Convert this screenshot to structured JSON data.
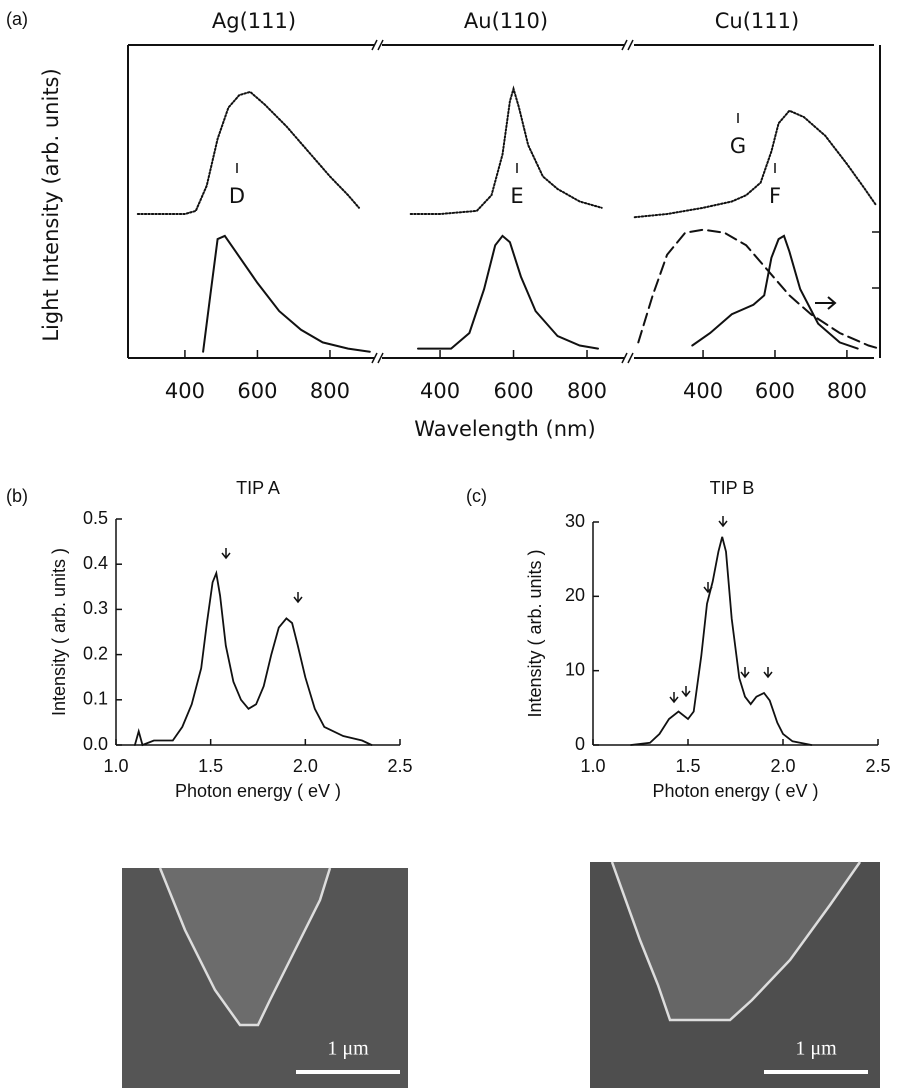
{
  "chart_data": [
    {
      "type": "line",
      "label": "(a)",
      "xlabel": "Wavelength (nm)",
      "ylabel": "Light Intensity (arb. units)",
      "panels": [
        {
          "title": "Ag(111)",
          "xlim": [
            243,
            938
          ],
          "xticks": [
            400,
            600,
            800
          ],
          "ylim": [
            0,
            1
          ],
          "annotations": [
            "D"
          ],
          "series": [
            {
              "color": "#111",
              "style": "dotted",
              "x": [
                270,
                400,
                430,
                460,
                490,
                520,
                550,
                580,
                620,
                680,
                740,
                800,
                850,
                880
              ],
              "values": [
                0.46,
                0.46,
                0.47,
                0.55,
                0.7,
                0.8,
                0.84,
                0.85,
                0.81,
                0.74,
                0.66,
                0.58,
                0.52,
                0.48
              ]
            },
            {
              "color": "#111",
              "style": "solid",
              "x": [
                450,
                470,
                490,
                510,
                540,
                600,
                660,
                720,
                780,
                850,
                910
              ],
              "values": [
                0.02,
                0.2,
                0.38,
                0.39,
                0.34,
                0.24,
                0.15,
                0.09,
                0.05,
                0.03,
                0.02
              ]
            }
          ]
        },
        {
          "title": "Au(110)",
          "xlim": [
            242,
            917
          ],
          "xticks": [
            400,
            600,
            800
          ],
          "ylim": [
            0,
            1
          ],
          "annotations": [
            "E"
          ],
          "series": [
            {
              "color": "#111",
              "style": "dotted",
              "x": [
                320,
                400,
                500,
                540,
                570,
                590,
                600,
                615,
                640,
                680,
                720,
                780,
                840
              ],
              "values": [
                0.46,
                0.46,
                0.47,
                0.52,
                0.65,
                0.82,
                0.86,
                0.8,
                0.68,
                0.58,
                0.54,
                0.5,
                0.48
              ]
            },
            {
              "color": "#111",
              "style": "solid",
              "x": [
                340,
                430,
                480,
                520,
                550,
                570,
                590,
                620,
                660,
                720,
                780,
                830
              ],
              "values": [
                0.03,
                0.03,
                0.08,
                0.22,
                0.36,
                0.39,
                0.37,
                0.26,
                0.15,
                0.07,
                0.04,
                0.03
              ]
            }
          ]
        },
        {
          "title": "Cu(111)",
          "xlim": [
            208,
            892
          ],
          "xticks": [
            400,
            600,
            800
          ],
          "ylim": [
            0,
            1
          ],
          "annotations": [
            "F",
            "G"
          ],
          "series": [
            {
              "color": "#111",
              "style": "dotted",
              "x": [
                210,
                300,
                400,
                480,
                520,
                560,
                590,
                610,
                640,
                680,
                740,
                800,
                850,
                880
              ],
              "values": [
                0.45,
                0.46,
                0.48,
                0.5,
                0.52,
                0.56,
                0.66,
                0.75,
                0.79,
                0.77,
                0.71,
                0.62,
                0.54,
                0.49
              ]
            },
            {
              "color": "#111",
              "style": "solid",
              "x": [
                370,
                420,
                480,
                540,
                570,
                590,
                610,
                625,
                640,
                670,
                720,
                780,
                830
              ],
              "values": [
                0.04,
                0.08,
                0.14,
                0.17,
                0.2,
                0.32,
                0.38,
                0.39,
                0.34,
                0.22,
                0.11,
                0.05,
                0.03
              ]
            },
            {
              "color": "#111",
              "style": "dashed",
              "x": [
                220,
                260,
                300,
                350,
                400,
                460,
                520,
                580,
                640,
                700,
                780,
                860,
                890
              ],
              "values": [
                0.05,
                0.2,
                0.33,
                0.4,
                0.41,
                0.4,
                0.36,
                0.28,
                0.2,
                0.14,
                0.08,
                0.04,
                0.03
              ]
            }
          ]
        }
      ]
    },
    {
      "type": "line",
      "label": "(b)",
      "title": "TIP A",
      "xlabel": "Photon energy  ( eV )",
      "ylabel": "Intensity  ( arb. units )",
      "xlim": [
        1,
        2.5
      ],
      "xticks": [
        {
          "value": 1,
          "label": "1.0"
        },
        1.5,
        {
          "value": 2,
          "label": "2.0"
        },
        2.5
      ],
      "ylim": [
        0,
        0.5
      ],
      "yticks": [
        {
          "value": 0,
          "label": "0.0"
        },
        0.1,
        0.2,
        0.3,
        0.4,
        0.5
      ],
      "series": [
        {
          "color": "#111",
          "x": [
            1.1,
            1.12,
            1.14,
            1.2,
            1.3,
            1.35,
            1.4,
            1.45,
            1.48,
            1.51,
            1.53,
            1.55,
            1.58,
            1.62,
            1.66,
            1.7,
            1.74,
            1.78,
            1.82,
            1.86,
            1.9,
            1.93,
            1.96,
            2.0,
            2.05,
            2.1,
            2.2,
            2.3,
            2.35
          ],
          "values": [
            0.0,
            0.03,
            0.0,
            0.01,
            0.01,
            0.04,
            0.09,
            0.17,
            0.27,
            0.36,
            0.38,
            0.33,
            0.22,
            0.14,
            0.1,
            0.08,
            0.09,
            0.13,
            0.2,
            0.26,
            0.28,
            0.27,
            0.22,
            0.15,
            0.08,
            0.04,
            0.02,
            0.01,
            0.0
          ]
        }
      ]
    },
    {
      "type": "line",
      "label": "(c)",
      "title": "TIP B",
      "xlabel": "Photon energy  ( eV )",
      "ylabel": "Intensity  ( arb. units )",
      "xlim": [
        1,
        2.5
      ],
      "xticks": [
        {
          "value": 1,
          "label": "1.0"
        },
        1.5,
        {
          "value": 2,
          "label": "2.0"
        },
        2.5
      ],
      "ylim": [
        0,
        30
      ],
      "yticks": [
        0,
        10,
        20,
        30
      ],
      "series": [
        {
          "color": "#111",
          "x": [
            1.2,
            1.3,
            1.35,
            1.4,
            1.45,
            1.5,
            1.53,
            1.57,
            1.6,
            1.63,
            1.66,
            1.68,
            1.7,
            1.73,
            1.77,
            1.8,
            1.83,
            1.86,
            1.9,
            1.93,
            1.97,
            2.0,
            2.05,
            2.15
          ],
          "values": [
            0,
            0.3,
            1.5,
            3.5,
            4.5,
            3.5,
            4.5,
            12,
            19,
            22,
            26,
            28,
            26,
            17,
            9,
            6.5,
            5.5,
            6.5,
            7,
            6,
            3,
            1.5,
            0.5,
            0
          ]
        }
      ]
    }
  ],
  "images": [
    {
      "scale_label": "1 μm"
    },
    {
      "scale_label": "1 μm"
    }
  ]
}
